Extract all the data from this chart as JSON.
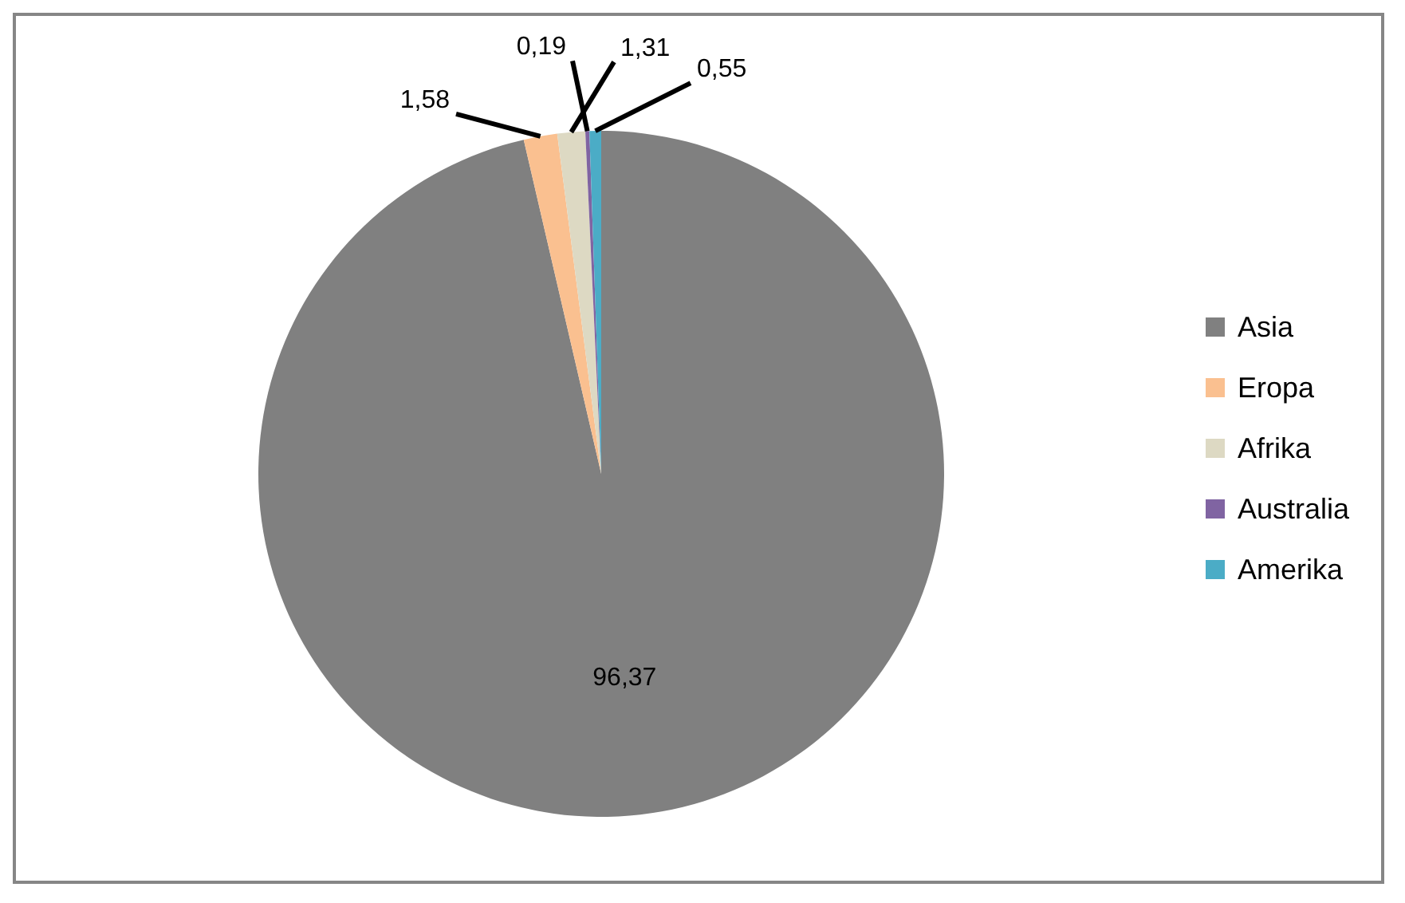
{
  "chart_data": {
    "type": "pie",
    "categories": [
      "Asia",
      "Eropa",
      "Afrika",
      "Australia",
      "Amerika"
    ],
    "values": [
      96.37,
      1.58,
      1.31,
      0.19,
      0.55
    ],
    "colors": [
      "#808080",
      "#fac090",
      "#ddd9c3",
      "#8064a2",
      "#4bacc6"
    ],
    "value_labels": [
      "96,37",
      "1,58",
      "1,31",
      "0,19",
      "0,55"
    ],
    "legend": "right"
  }
}
